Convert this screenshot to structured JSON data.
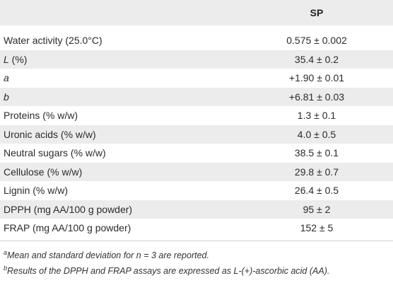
{
  "table": {
    "column_header": "SP",
    "rows": [
      {
        "label": "Water activity (25.0°C)",
        "value": "0.575 ± 0.002",
        "italic": false
      },
      {
        "label": "L (%)",
        "value": "35.4 ± 0.2",
        "italic_prefix": "L",
        "rest": " (%)"
      },
      {
        "label": "a",
        "value": "+1.90 ± 0.01",
        "italic": true
      },
      {
        "label": "b",
        "value": "+6.81 ± 0.03",
        "italic": true
      },
      {
        "label": "Proteins (% w/w)",
        "value": "1.3 ± 0.1",
        "italic": false
      },
      {
        "label": "Uronic acids (% w/w)",
        "value": "4.0 ± 0.5",
        "italic": false
      },
      {
        "label": "Neutral sugars (% w/w)",
        "value": "38.5 ± 0.1",
        "italic": false
      },
      {
        "label": "Cellulose (% w/w)",
        "value": "29.8 ± 0.7",
        "italic": false
      },
      {
        "label": "Lignin (% w/w)",
        "value": "26.4 ± 0.5",
        "italic": false
      },
      {
        "label": "DPPH (mg AA/100 g powder)",
        "value": "95 ± 2",
        "italic": false
      },
      {
        "label": "FRAP (mg AA/100 g powder)",
        "value": "152 ± 5",
        "italic": false
      }
    ]
  },
  "footnotes": [
    {
      "marker": "a",
      "text": "Mean and standard deviation for n = 3 are reported."
    },
    {
      "marker": "b",
      "text": "Results of the DPPH and FRAP assays are expressed as L-(+)-ascorbic acid (AA)."
    }
  ]
}
